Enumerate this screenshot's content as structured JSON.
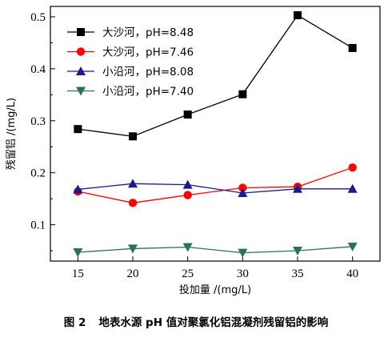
{
  "chart_data": {
    "type": "line",
    "x": [
      15,
      20,
      25,
      30,
      35,
      40
    ],
    "xticks": [
      "15",
      "20",
      "25",
      "30",
      "35",
      "40"
    ],
    "yticks": [
      "0.1",
      "0.2",
      "0.3",
      "0.4",
      "0.5"
    ],
    "xlabel": "投加量 /(mg/L)",
    "ylabel": "残留铝 /(mg/L)",
    "xlim": [
      12.5,
      42.5
    ],
    "ylim": [
      0.03,
      0.52
    ],
    "grid": false,
    "legend_position": "top-left",
    "series": [
      {
        "name": "大沙河，pH=8.48",
        "marker": "square",
        "color": "#000000",
        "values": [
          0.284,
          0.27,
          0.312,
          0.351,
          0.503,
          0.44
        ]
      },
      {
        "name": "大沙河，pH=7.46",
        "marker": "circle",
        "color": "#ff0000",
        "values": [
          0.164,
          0.142,
          0.157,
          0.171,
          0.173,
          0.21
        ]
      },
      {
        "name": "小沿河，pH=8.08",
        "marker": "triangle-up",
        "color": "#1a1a8c",
        "values": [
          0.168,
          0.179,
          0.177,
          0.161,
          0.169,
          0.169
        ]
      },
      {
        "name": "小沿河，pH=7.40",
        "marker": "triangle-down",
        "color": "#2e6e5c",
        "values": [
          0.047,
          0.054,
          0.057,
          0.046,
          0.05,
          0.058
        ]
      }
    ]
  },
  "caption": {
    "figure_number": "图 2",
    "text": "地表水源 pH 值对聚氯化铝混凝剂残留铝的影响"
  }
}
